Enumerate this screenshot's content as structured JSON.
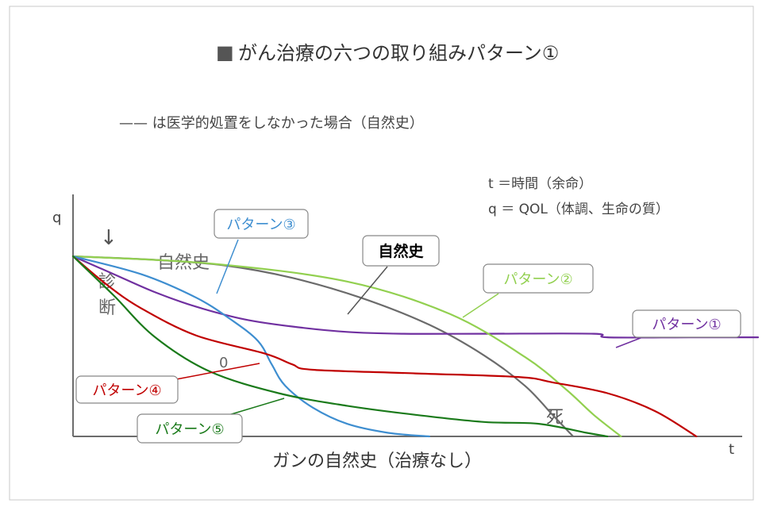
{
  "header": {
    "title_mark": "■",
    "title": "がん治療の六つの取り組みパターン①",
    "legend_note": "—— は医学的処置をしなかった場合（自然史）",
    "def_t": "t ＝時間（余命）",
    "def_q": "q ＝ QOL（体調、生命の質）"
  },
  "chart_data": {
    "type": "line",
    "title": "がん治療の六つの取り組みパターン①",
    "xlabel": "ガンの自然史（治療なし）",
    "ylabel": "q",
    "x_axis_end_label": "t",
    "xlim": [
      0,
      100
    ],
    "ylim": [
      0,
      100
    ],
    "grid": false,
    "annotations": {
      "diagnosis_arrow": "↓",
      "diagnosis_chars": [
        "診",
        "断"
      ],
      "natural_history_text": "自然史",
      "zero_mark": "0",
      "death": "死"
    },
    "series": [
      {
        "name": "自然史",
        "color": "#6b6b6b",
        "x": [
          0,
          12,
          22,
          32,
          42,
          52,
          60,
          66,
          70,
          73
        ],
        "y": [
          100,
          98,
          95,
          88,
          77,
          62,
          45,
          28,
          12,
          0
        ]
      },
      {
        "name": "パターン①",
        "color": "#7030a0",
        "x": [
          0,
          6,
          12,
          18,
          25,
          32,
          40,
          48,
          60,
          76,
          78,
          90,
          100
        ],
        "y": [
          100,
          90,
          80,
          72,
          65,
          61,
          58,
          57,
          57,
          57,
          55,
          55,
          55
        ]
      },
      {
        "name": "パターン②",
        "color": "#92d050",
        "x": [
          0,
          20,
          40,
          55,
          66,
          72,
          76,
          80
        ],
        "y": [
          100,
          96,
          86,
          68,
          44,
          26,
          12,
          0
        ]
      },
      {
        "name": "パターン③",
        "color": "#3e8ed0",
        "x": [
          0,
          10,
          18,
          23,
          27,
          29,
          31,
          35,
          40,
          46,
          52
        ],
        "y": [
          100,
          90,
          77,
          65,
          53,
          40,
          28,
          16,
          7,
          2,
          0
        ]
      },
      {
        "name": "パターン④",
        "color": "#c00000",
        "x": [
          0,
          5,
          10,
          18,
          28,
          32,
          35,
          50,
          65,
          70,
          78,
          85,
          91
        ],
        "y": [
          100,
          84,
          71,
          56,
          46,
          40,
          37,
          35,
          33,
          30,
          24,
          14,
          0
        ]
      },
      {
        "name": "パターン⑤",
        "color": "#1a7a1a",
        "x": [
          0,
          6,
          12,
          20,
          30,
          40,
          50,
          60,
          68,
          75,
          78
        ],
        "y": [
          100,
          78,
          55,
          36,
          24,
          17,
          12,
          8,
          7,
          2,
          0
        ]
      }
    ],
    "callouts": [
      {
        "text": "パターン③",
        "color": "#3e8ed0",
        "bold": false
      },
      {
        "text": "自然史",
        "color": "#000000",
        "bold": true
      },
      {
        "text": "パターン②",
        "color": "#92d050",
        "bold": false
      },
      {
        "text": "パターン①",
        "color": "#7030a0",
        "bold": false
      },
      {
        "text": "パターン④",
        "color": "#c00000",
        "bold": false
      },
      {
        "text": "パターン⑤",
        "color": "#1a7a1a",
        "bold": false
      }
    ]
  }
}
